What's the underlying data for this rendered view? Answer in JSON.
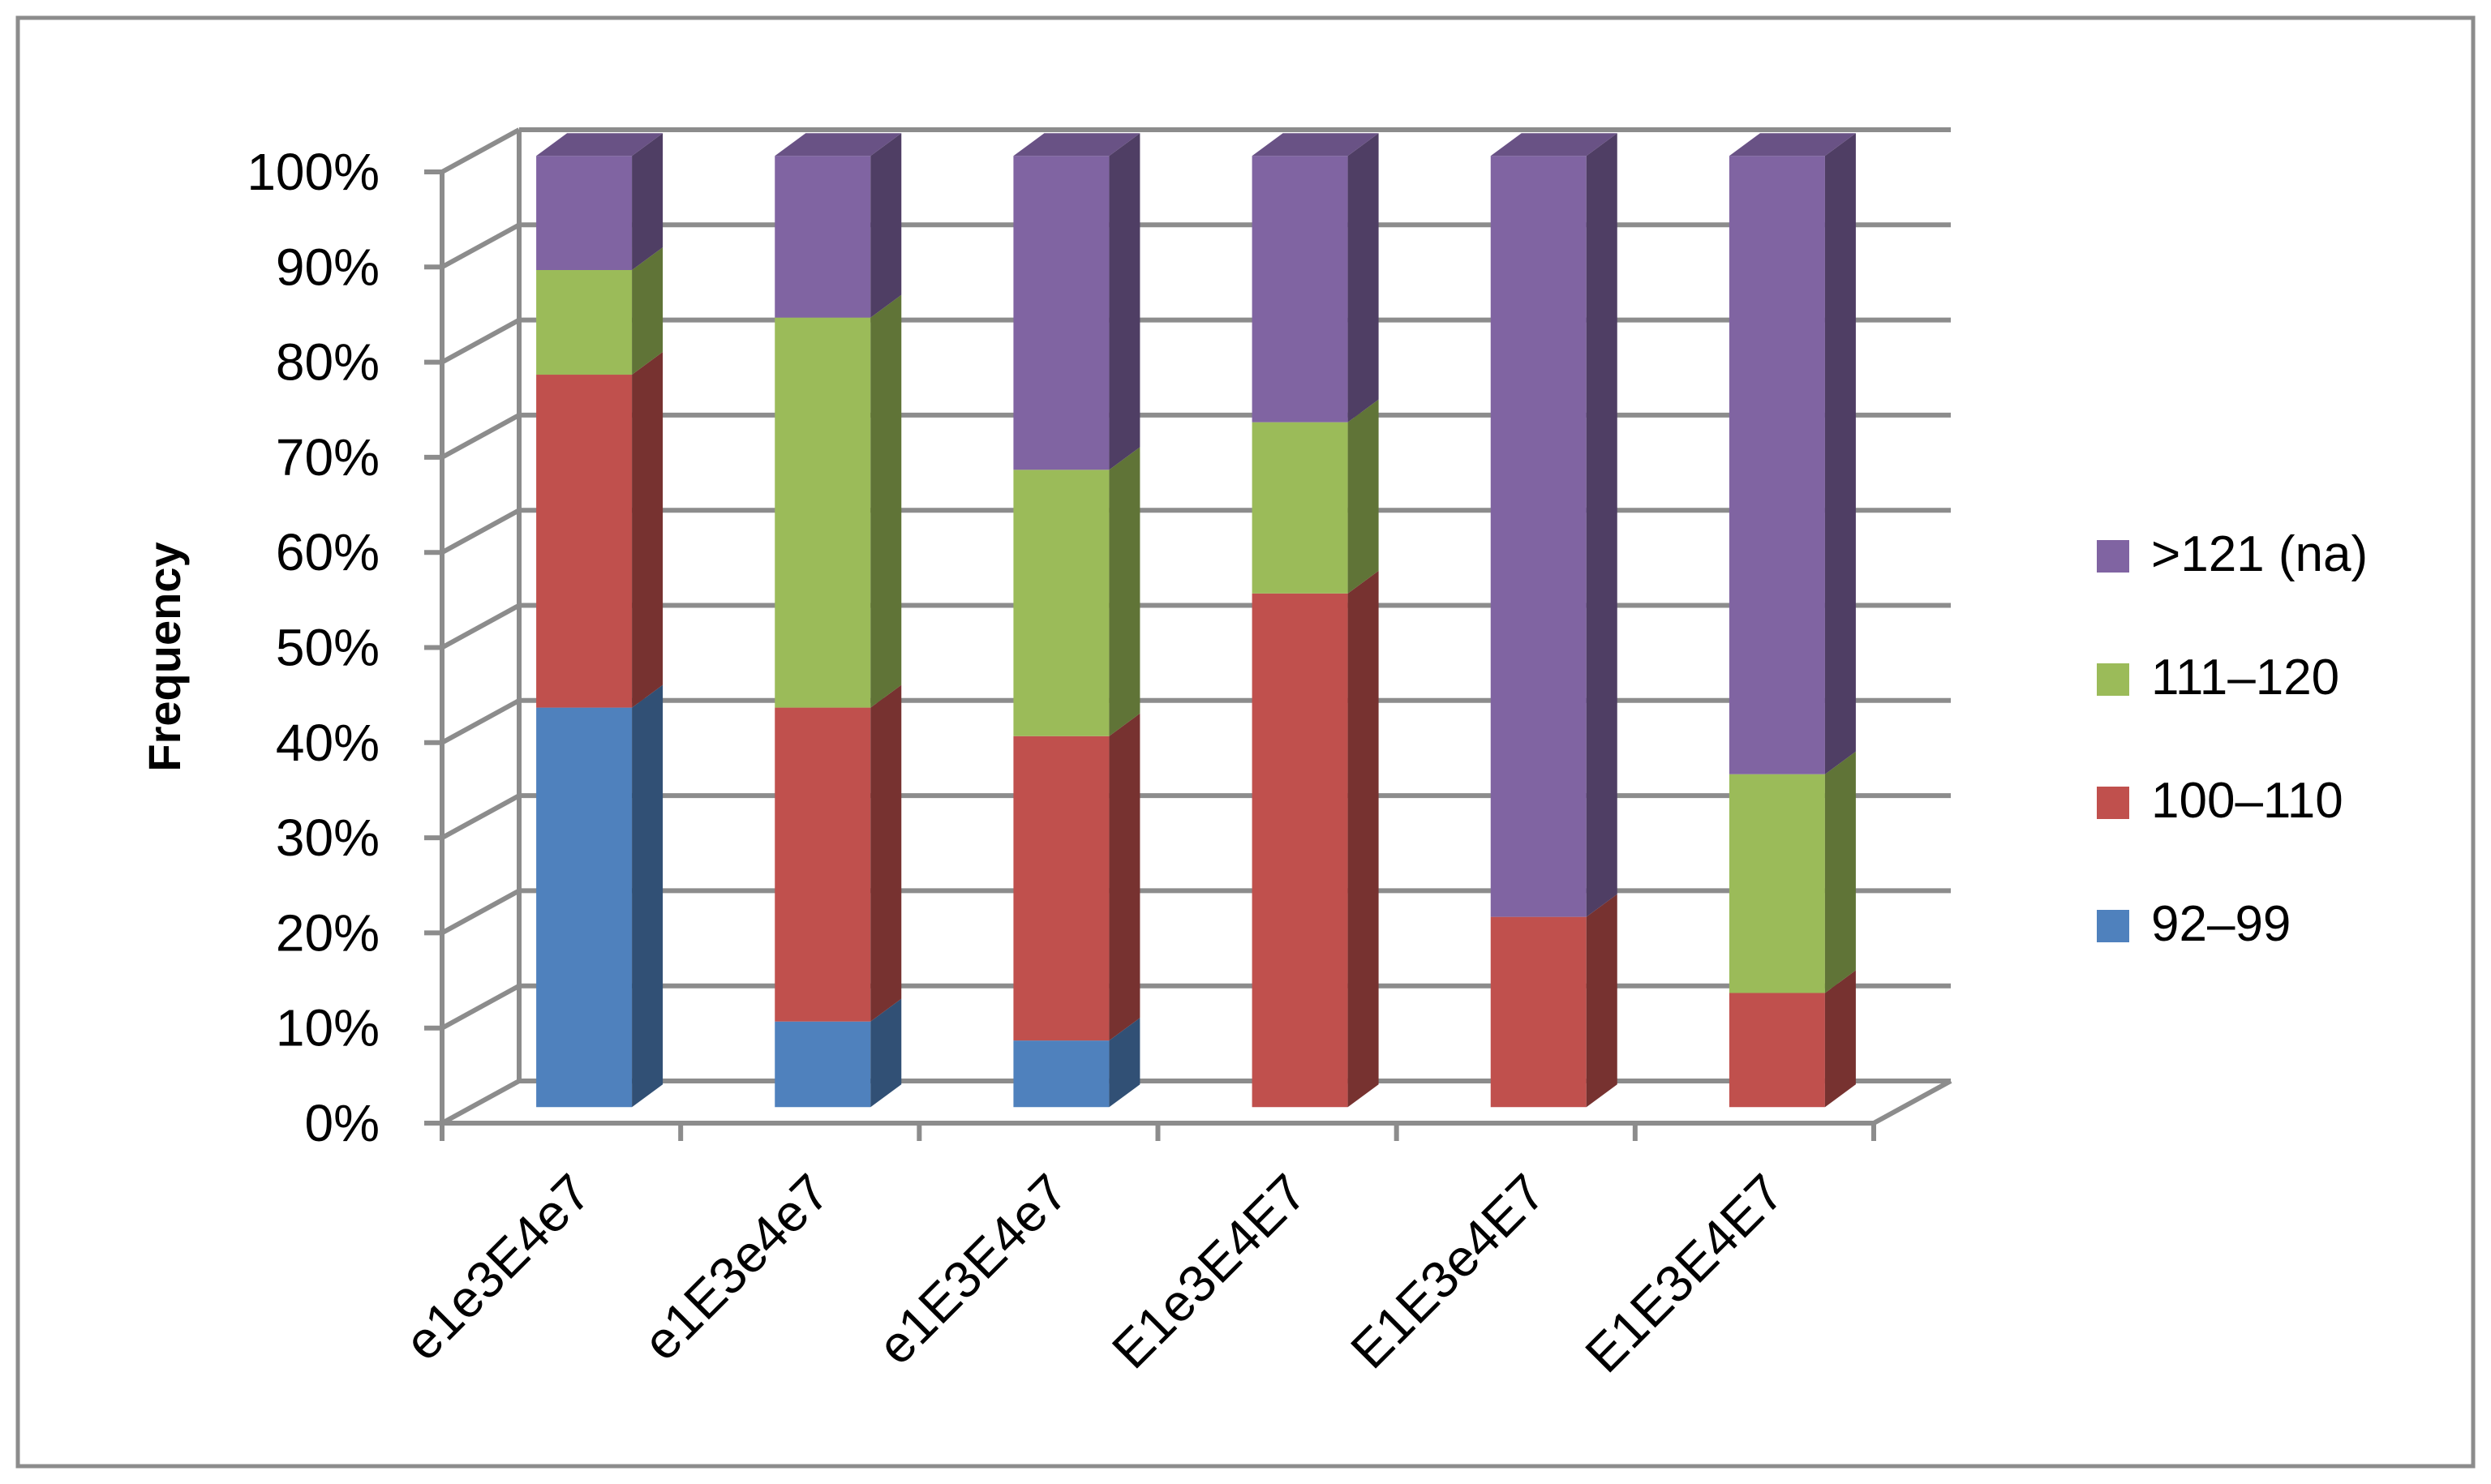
{
  "chart_data": {
    "type": "bar",
    "stacked": true,
    "three_d": true,
    "categories": [
      "e1e3E4e7",
      "e1E3e4e7",
      "e1E3E4e7",
      "E1e3E4E7",
      "E1E3e4E7",
      "E1E3E4E7"
    ],
    "series": [
      {
        "name": "92–99",
        "color": "#4F81BD",
        "values": [
          42,
          9,
          7,
          0,
          0,
          0
        ]
      },
      {
        "name": "100–110",
        "color": "#C0504D",
        "values": [
          35,
          33,
          32,
          54,
          20,
          12
        ]
      },
      {
        "name": "111–120",
        "color": "#9BBB59",
        "values": [
          11,
          41,
          28,
          18,
          0,
          23
        ]
      },
      {
        "name": ">121 (na)",
        "color": "#8064A2",
        "values": [
          12,
          17,
          33,
          28,
          80,
          65
        ]
      }
    ],
    "ylabel": "Frequency",
    "xlabel": "",
    "ylim": [
      0,
      100
    ],
    "y_ticks": [
      "0%",
      "10%",
      "20%",
      "30%",
      "40%",
      "50%",
      "60%",
      "70%",
      "80%",
      "90%",
      "100%"
    ],
    "grid": true,
    "legend_position": "right",
    "legend_order": [
      ">121 (na)",
      "111–120",
      "100–110",
      "92–99"
    ]
  }
}
